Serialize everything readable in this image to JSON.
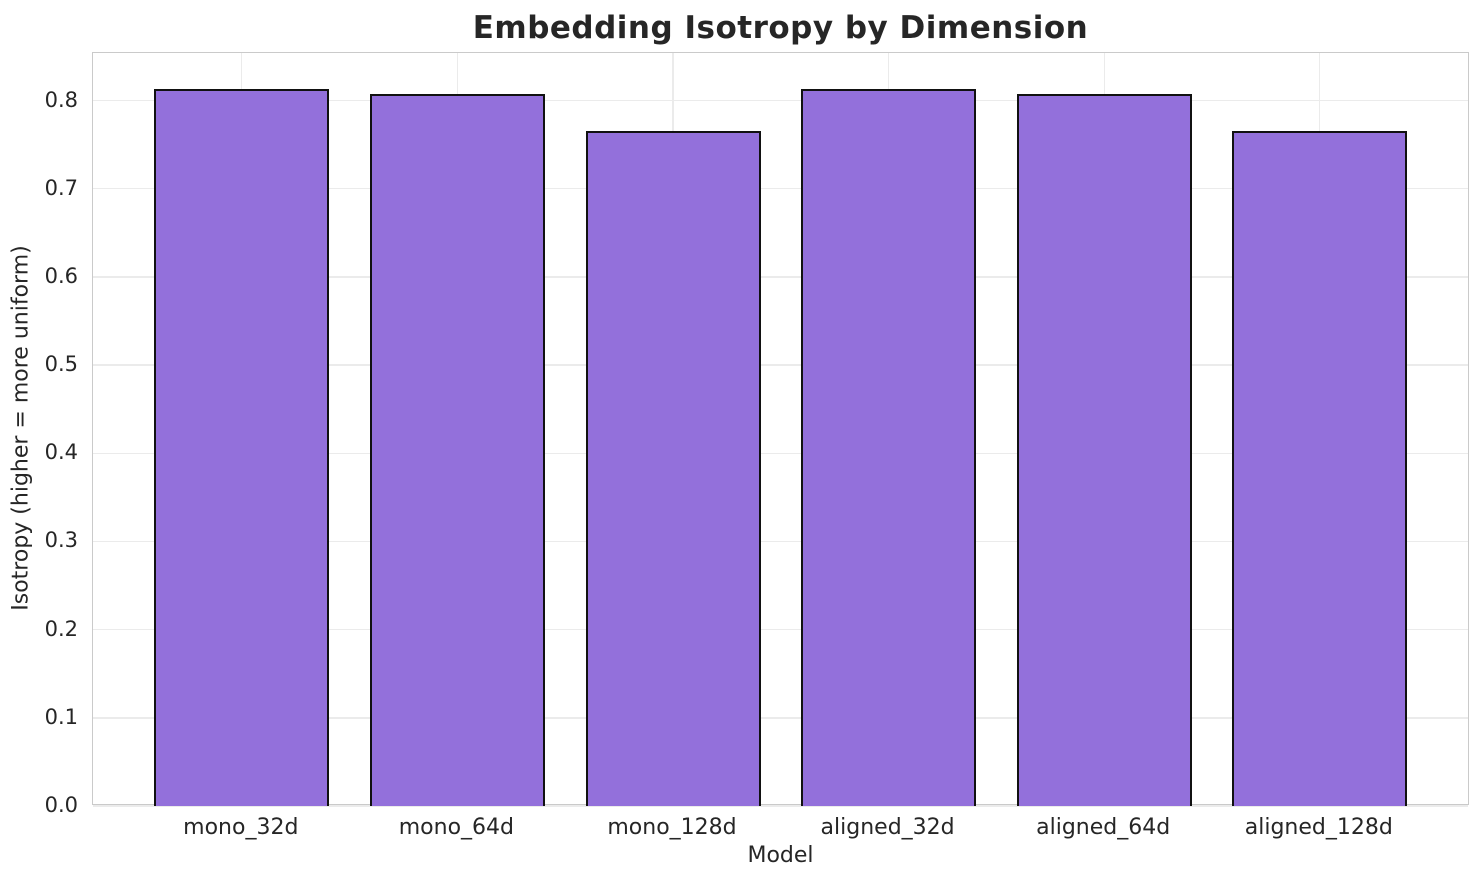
{
  "chart_data": {
    "type": "bar",
    "title": "Embedding Isotropy by Dimension",
    "xlabel": "Model",
    "ylabel": "Isotropy (higher = more uniform)",
    "categories": [
      "mono_32d",
      "mono_64d",
      "mono_128d",
      "aligned_32d",
      "aligned_64d",
      "aligned_128d"
    ],
    "values": [
      0.813,
      0.807,
      0.765,
      0.813,
      0.807,
      0.765
    ],
    "ylim": [
      0,
      0.854
    ],
    "yticks": [
      "0.0",
      "0.1",
      "0.2",
      "0.3",
      "0.4",
      "0.5",
      "0.6",
      "0.7",
      "0.8"
    ],
    "grid": true,
    "legend": false,
    "colors": {
      "bar_fill": "#9370DB",
      "bar_edge": "#111111",
      "grid_line": "#ebebeb",
      "axis_spine": "#cacaca",
      "text": "#262626",
      "background": "#ffffff"
    }
  }
}
